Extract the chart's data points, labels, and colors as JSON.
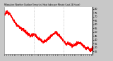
{
  "title": "Milwaukee Weather Outdoor Temp (vs) Heat Index per Minute (Last 24 Hours)",
  "line_color": "#ff0000",
  "bg_color": "#c8c8c8",
  "plot_bg_color": "#ffffff",
  "ylim": [
    22,
    82
  ],
  "y_ticks": [
    25,
    30,
    35,
    40,
    45,
    50,
    55,
    60,
    65,
    70,
    75,
    80
  ],
  "y_tick_labels": [
    "25",
    "30",
    "35",
    "40",
    "45",
    "50",
    "55",
    "60",
    "65",
    "70",
    "75",
    "80"
  ],
  "num_points": 1440,
  "grid_color": "#999999",
  "title_color": "#000000",
  "tick_label_color": "#000000",
  "num_vgrid": 2,
  "linewidth": 0.5
}
